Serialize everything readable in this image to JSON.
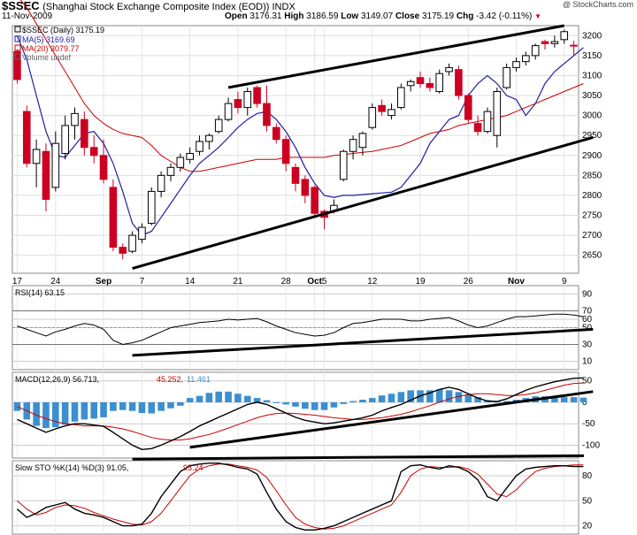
{
  "header": {
    "symbol": "$SSEC",
    "name": "(Shanghai Stock Exchange Composite Index (EOD)) INDX",
    "date": "11-Nov-2009",
    "open_label": "Open",
    "open": "3176.31",
    "high_label": "High",
    "high": "3186.59",
    "low_label": "Low",
    "low": "3149.07",
    "close_label": "Close",
    "close": "3175.19",
    "chg_label": "Chg",
    "chg": "-3.42 (-0.11%)",
    "brand": "@ StockCharts.com"
  },
  "colors": {
    "up": "#000000",
    "down": "#cc0022",
    "ma5": "#1f1f9f",
    "ma20": "#cc0000",
    "macd_hist": "#3b8fd0",
    "signal": "#cc0000",
    "trend": "#000000"
  },
  "legend": {
    "daily": "$SSEC (Daily) 3175.19",
    "ma5": "MA(5) 3169.69",
    "ma20": "MA(20) 3079.77",
    "volume": "Volume undef"
  },
  "panels": {
    "rsi_label": "RSI(14) 63.15",
    "macd_label": "MACD(12,26,9) 56.713,",
    "macd_signal": "45.252,",
    "macd_hist": "11.461",
    "sto_label": "Slow STO %K(14) %D(3) 91.05,",
    "sto_d": "93.24"
  },
  "chart_data": {
    "type": "candlestick",
    "title": "$SSEC (Daily) 3175.19",
    "price_ylim": [
      2605,
      3225
    ],
    "price_yticks": [
      2650,
      2700,
      2750,
      2800,
      2850,
      2900,
      2950,
      3000,
      3050,
      3100,
      3150,
      3200
    ],
    "x_tick_labels": [
      {
        "label": "17",
        "index": 0
      },
      {
        "label": "24",
        "index": 4
      },
      {
        "label": "Sep",
        "index": 9
      },
      {
        "label": "7",
        "index": 13
      },
      {
        "label": "14",
        "index": 18
      },
      {
        "label": "21",
        "index": 23
      },
      {
        "label": "28",
        "index": 28
      },
      {
        "label": "Oct",
        "index": 31
      },
      {
        "label": "5",
        "index": 32
      },
      {
        "label": "12",
        "index": 37
      },
      {
        "label": "19",
        "index": 42
      },
      {
        "label": "26",
        "index": 47
      },
      {
        "label": "Nov",
        "index": 52
      },
      {
        "label": "9",
        "index": 57
      }
    ],
    "candles": [
      {
        "o": 3160,
        "h": 3165,
        "l": 3080,
        "c": 3090
      },
      {
        "o": 3010,
        "h": 3025,
        "l": 2870,
        "c": 2880
      },
      {
        "o": 2880,
        "h": 2940,
        "l": 2820,
        "c": 2915
      },
      {
        "o": 2910,
        "h": 2930,
        "l": 2760,
        "c": 2790
      },
      {
        "o": 2820,
        "h": 2960,
        "l": 2810,
        "c": 2930
      },
      {
        "o": 2905,
        "h": 3000,
        "l": 2890,
        "c": 2975
      },
      {
        "o": 2975,
        "h": 3020,
        "l": 2940,
        "c": 3005
      },
      {
        "o": 2990,
        "h": 3010,
        "l": 2900,
        "c": 2920
      },
      {
        "o": 2920,
        "h": 2950,
        "l": 2880,
        "c": 2900
      },
      {
        "o": 2900,
        "h": 2940,
        "l": 2830,
        "c": 2840
      },
      {
        "o": 2820,
        "h": 2840,
        "l": 2660,
        "c": 2670
      },
      {
        "o": 2670,
        "h": 2680,
        "l": 2640,
        "c": 2655
      },
      {
        "o": 2660,
        "h": 2710,
        "l": 2655,
        "c": 2700
      },
      {
        "o": 2690,
        "h": 2730,
        "l": 2680,
        "c": 2720
      },
      {
        "o": 2730,
        "h": 2820,
        "l": 2725,
        "c": 2810
      },
      {
        "o": 2810,
        "h": 2860,
        "l": 2795,
        "c": 2850
      },
      {
        "o": 2850,
        "h": 2880,
        "l": 2835,
        "c": 2870
      },
      {
        "o": 2870,
        "h": 2905,
        "l": 2860,
        "c": 2895
      },
      {
        "o": 2890,
        "h": 2920,
        "l": 2880,
        "c": 2905
      },
      {
        "o": 2910,
        "h": 2950,
        "l": 2900,
        "c": 2935
      },
      {
        "o": 2935,
        "h": 2955,
        "l": 2915,
        "c": 2950
      },
      {
        "o": 2960,
        "h": 3000,
        "l": 2955,
        "c": 2990
      },
      {
        "o": 2990,
        "h": 3045,
        "l": 2985,
        "c": 3030
      },
      {
        "o": 3040,
        "h": 3060,
        "l": 3005,
        "c": 3020
      },
      {
        "o": 3020,
        "h": 3070,
        "l": 3000,
        "c": 3060
      },
      {
        "o": 3070,
        "h": 3075,
        "l": 3020,
        "c": 3030
      },
      {
        "o": 3030,
        "h": 3075,
        "l": 2960,
        "c": 2975
      },
      {
        "o": 2970,
        "h": 2980,
        "l": 2930,
        "c": 2940
      },
      {
        "o": 2940,
        "h": 2950,
        "l": 2860,
        "c": 2880
      },
      {
        "o": 2870,
        "h": 2880,
        "l": 2810,
        "c": 2830
      },
      {
        "o": 2840,
        "h": 2850,
        "l": 2780,
        "c": 2800
      },
      {
        "o": 2820,
        "h": 2825,
        "l": 2745,
        "c": 2755
      },
      {
        "o": 2760,
        "h": 2765,
        "l": 2715,
        "c": 2745
      },
      {
        "o": 2760,
        "h": 2790,
        "l": 2755,
        "c": 2775
      },
      {
        "o": 2840,
        "h": 2915,
        "l": 2835,
        "c": 2910
      },
      {
        "o": 2910,
        "h": 2950,
        "l": 2890,
        "c": 2940
      },
      {
        "o": 2920,
        "h": 2960,
        "l": 2900,
        "c": 2955
      },
      {
        "o": 2970,
        "h": 3030,
        "l": 2965,
        "c": 3020
      },
      {
        "o": 3025,
        "h": 3040,
        "l": 3000,
        "c": 3010
      },
      {
        "o": 3000,
        "h": 3030,
        "l": 2990,
        "c": 3015
      },
      {
        "o": 3020,
        "h": 3080,
        "l": 3015,
        "c": 3070
      },
      {
        "o": 3075,
        "h": 3090,
        "l": 3060,
        "c": 3085
      },
      {
        "o": 3095,
        "h": 3110,
        "l": 3070,
        "c": 3080
      },
      {
        "o": 3080,
        "h": 3095,
        "l": 3060,
        "c": 3070
      },
      {
        "o": 3060,
        "h": 3115,
        "l": 3055,
        "c": 3105
      },
      {
        "o": 3110,
        "h": 3130,
        "l": 3100,
        "c": 3120
      },
      {
        "o": 3115,
        "h": 3125,
        "l": 3040,
        "c": 3050
      },
      {
        "o": 3050,
        "h": 3055,
        "l": 2980,
        "c": 2990
      },
      {
        "o": 2980,
        "h": 3000,
        "l": 2950,
        "c": 2960
      },
      {
        "o": 2960,
        "h": 3020,
        "l": 2955,
        "c": 3010
      },
      {
        "o": 2950,
        "h": 3070,
        "l": 2920,
        "c": 3060
      },
      {
        "o": 3070,
        "h": 3130,
        "l": 3065,
        "c": 3120
      },
      {
        "o": 3120,
        "h": 3145,
        "l": 3110,
        "c": 3135
      },
      {
        "o": 3135,
        "h": 3160,
        "l": 3125,
        "c": 3150
      },
      {
        "o": 3150,
        "h": 3180,
        "l": 3140,
        "c": 3175
      },
      {
        "o": 3185,
        "h": 3190,
        "l": 3165,
        "c": 3180
      },
      {
        "o": 3180,
        "h": 3200,
        "l": 3170,
        "c": 3185
      },
      {
        "o": 3190,
        "h": 3215,
        "l": 3180,
        "c": 3210
      },
      {
        "o": 3176,
        "h": 3187,
        "l": 3149,
        "c": 3175
      }
    ],
    "ma5": [
      3200,
      3140,
      3050,
      2960,
      2900,
      2895,
      2925,
      2955,
      2960,
      2930,
      2880,
      2810,
      2730,
      2700,
      2710,
      2745,
      2780,
      2815,
      2850,
      2880,
      2900,
      2920,
      2945,
      2970,
      2990,
      3005,
      3010,
      2990,
      2960,
      2920,
      2870,
      2830,
      2800,
      2795,
      2800,
      2800,
      2802,
      2804,
      2806,
      2808,
      2820,
      2850,
      2880,
      2930,
      2960,
      2990,
      3000,
      3050,
      3080,
      3100,
      3080,
      3050,
      3040,
      3000,
      3030,
      3080,
      3110,
      3130,
      3150,
      3170
    ],
    "ma20": [
      3300,
      3270,
      3230,
      3190,
      3150,
      3110,
      3070,
      3030,
      3000,
      2980,
      2965,
      2955,
      2950,
      2945,
      2925,
      2900,
      2885,
      2870,
      2860,
      2860,
      2865,
      2870,
      2875,
      2880,
      2885,
      2890,
      2890,
      2890,
      2895,
      2895,
      2895,
      2895,
      2895,
      2900,
      2902,
      2905,
      2908,
      2910,
      2915,
      2920,
      2925,
      2935,
      2945,
      2955,
      2960,
      2965,
      2975,
      2980,
      2985,
      2990,
      2995,
      3000,
      3010,
      3020,
      3030,
      3040,
      3050,
      3060,
      3070,
      3080
    ],
    "price_trendlines": [
      {
        "from": [
          12,
          2617
        ],
        "to": [
          60,
          2945
        ]
      },
      {
        "from": [
          22,
          3070
        ],
        "to": [
          57,
          3225
        ]
      }
    ],
    "rsi": {
      "ylim": [
        0,
        100
      ],
      "yticks": [
        10,
        30,
        50,
        60,
        70,
        90
      ],
      "values": [
        52,
        48,
        44,
        40,
        45,
        48,
        52,
        55,
        53,
        48,
        35,
        30,
        32,
        35,
        40,
        45,
        50,
        52,
        54,
        56,
        57,
        58,
        60,
        59,
        60,
        61,
        57,
        52,
        48,
        44,
        42,
        40,
        41,
        44,
        50,
        55,
        56,
        58,
        60,
        60,
        60,
        58,
        58,
        60,
        61,
        62,
        58,
        53,
        50,
        52,
        56,
        60,
        63,
        63,
        64,
        65,
        66,
        66,
        65,
        63
      ],
      "trendline": {
        "from": [
          12,
          17
        ],
        "to": [
          60,
          48
        ]
      }
    },
    "macd": {
      "ylim": [
        -130,
        70
      ],
      "yticks": [
        -100,
        -50,
        0,
        50
      ],
      "macd": [
        -40,
        -50,
        -60,
        -70,
        -62,
        -55,
        -50,
        -50,
        -53,
        -56,
        -70,
        -85,
        -100,
        -110,
        -108,
        -100,
        -90,
        -80,
        -68,
        -55,
        -45,
        -35,
        -25,
        -15,
        -5,
        0,
        -5,
        -15,
        -25,
        -35,
        -42,
        -46,
        -50,
        -48,
        -44,
        -40,
        -36,
        -30,
        -20,
        -12,
        -5,
        5,
        15,
        22,
        30,
        35,
        30,
        20,
        10,
        3,
        2,
        8,
        18,
        28,
        36,
        42,
        48,
        52,
        56,
        57
      ],
      "signal": [
        -10,
        -20,
        -30,
        -38,
        -45,
        -50,
        -52,
        -55,
        -55,
        -55,
        -58,
        -62,
        -68,
        -75,
        -82,
        -86,
        -88,
        -88,
        -85,
        -80,
        -75,
        -68,
        -60,
        -52,
        -44,
        -36,
        -30,
        -26,
        -25,
        -26,
        -28,
        -30,
        -33,
        -36,
        -38,
        -40,
        -40,
        -38,
        -36,
        -32,
        -28,
        -22,
        -15,
        -8,
        0,
        8,
        14,
        18,
        20,
        20,
        18,
        16,
        16,
        18,
        22,
        28,
        34,
        40,
        44,
        45
      ],
      "histogram": [
        -20,
        -40,
        -55,
        -60,
        -58,
        -52,
        -45,
        -40,
        -38,
        -35,
        -20,
        -18,
        -20,
        -25,
        -26,
        -20,
        -14,
        -8,
        10,
        15,
        22,
        25,
        25,
        20,
        15,
        10,
        5,
        0,
        -5,
        -10,
        -15,
        -18,
        -18,
        -12,
        -4,
        3,
        6,
        10,
        16,
        20,
        24,
        28,
        28,
        28,
        30,
        28,
        24,
        18,
        12,
        5,
        2,
        3,
        6,
        10,
        14,
        14,
        14,
        12,
        12,
        11
      ],
      "trendline": {
        "from": [
          18,
          -105
        ],
        "to": [
          60,
          25
        ]
      }
    },
    "slow_sto": {
      "ylim": [
        10,
        98
      ],
      "yticks": [
        20,
        50,
        80
      ],
      "k": [
        40,
        30,
        35,
        42,
        45,
        48,
        40,
        35,
        33,
        30,
        25,
        20,
        20,
        22,
        35,
        55,
        70,
        85,
        92,
        94,
        95,
        95,
        93,
        90,
        88,
        82,
        60,
        40,
        25,
        18,
        15,
        15,
        17,
        20,
        25,
        30,
        35,
        40,
        45,
        50,
        85,
        92,
        93,
        90,
        88,
        92,
        90,
        85,
        75,
        55,
        50,
        65,
        80,
        88,
        90,
        91,
        92,
        92,
        91,
        91
      ],
      "d": [
        50,
        40,
        33,
        36,
        42,
        45,
        44,
        41,
        36,
        32,
        28,
        25,
        22,
        21,
        25,
        35,
        50,
        65,
        80,
        88,
        92,
        94,
        94,
        92,
        90,
        87,
        78,
        62,
        45,
        30,
        22,
        18,
        16,
        17,
        20,
        25,
        30,
        35,
        40,
        45,
        60,
        80,
        88,
        91,
        90,
        90,
        91,
        88,
        82,
        70,
        58,
        55,
        63,
        75,
        85,
        89,
        91,
        92,
        93,
        93
      ],
      "trendline": {
        "from": [
          12,
          100
        ],
        "to": [
          61,
          104
        ]
      }
    }
  }
}
